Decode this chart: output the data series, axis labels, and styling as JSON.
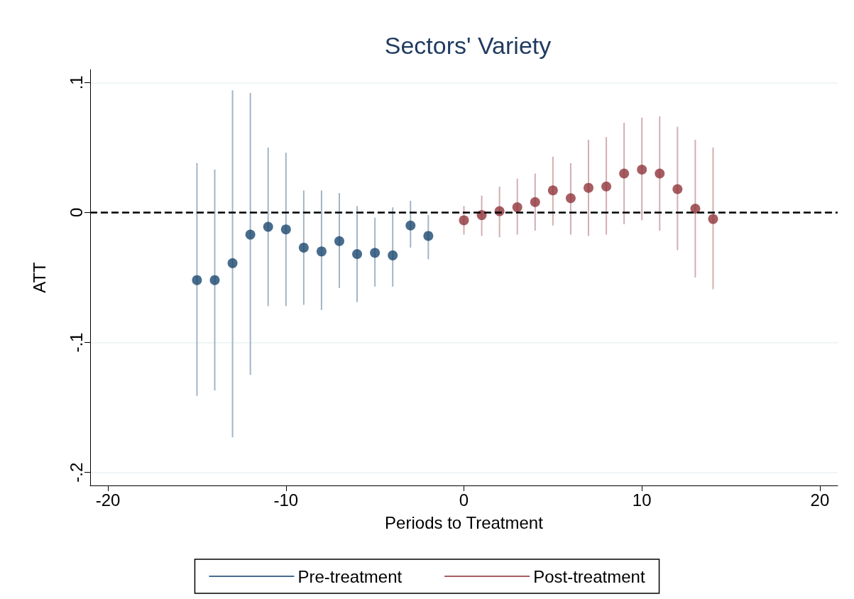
{
  "chart_data": {
    "type": "scatter",
    "title": "Sectors' Variety",
    "xlabel": "Periods to Treatment",
    "ylabel": "ATT",
    "xlim": [
      -21,
      21
    ],
    "xticks": [
      -20,
      -10,
      0,
      10,
      20
    ],
    "ylim": [
      -0.21,
      0.11
    ],
    "yticks": [
      {
        "value": 0.1,
        "label": ".1"
      },
      {
        "value": 0,
        "label": "0"
      },
      {
        "value": -0.1,
        "label": "-.1"
      },
      {
        "value": -0.2,
        "label": "-.2"
      }
    ],
    "grid": "y",
    "legend": "bottom",
    "marker": "circle",
    "ref_lines": [
      {
        "axis": "y",
        "value": 0,
        "color": "#000000",
        "line_style": "dashed"
      }
    ],
    "series": [
      {
        "name": "Pre-treatment",
        "color": "#1a476f",
        "x": [
          -15,
          -14,
          -13,
          -12,
          -11,
          -10,
          -9,
          -8,
          -7,
          -6,
          -5,
          -4,
          -3,
          -2
        ],
        "values": [
          -0.052,
          -0.052,
          -0.039,
          -0.017,
          -0.011,
          -0.013,
          -0.027,
          -0.03,
          -0.022,
          -0.032,
          -0.031,
          -0.033,
          -0.01,
          -0.018
        ],
        "errors": [
          [
            -0.141,
            0.038
          ],
          [
            -0.137,
            0.033
          ],
          [
            -0.173,
            0.094
          ],
          [
            -0.125,
            0.092
          ],
          [
            -0.072,
            0.05
          ],
          [
            -0.072,
            0.046
          ],
          [
            -0.071,
            0.017
          ],
          [
            -0.075,
            0.017
          ],
          [
            -0.058,
            0.015
          ],
          [
            -0.069,
            0.005
          ],
          [
            -0.057,
            -0.004
          ],
          [
            -0.057,
            0.004
          ],
          [
            -0.027,
            0.009
          ],
          [
            -0.036,
            -0.002
          ]
        ]
      },
      {
        "name": "Post-treatment",
        "color": "#90353b",
        "x": [
          0,
          1,
          2,
          3,
          4,
          5,
          6,
          7,
          8,
          9,
          10,
          11,
          12,
          13,
          14
        ],
        "values": [
          -0.006,
          -0.002,
          0.001,
          0.004,
          0.008,
          0.017,
          0.011,
          0.019,
          0.02,
          0.03,
          0.033,
          0.03,
          0.018,
          0.003,
          -0.005
        ],
        "errors": [
          [
            -0.017,
            0.005
          ],
          [
            -0.018,
            0.013
          ],
          [
            -0.019,
            0.02
          ],
          [
            -0.017,
            0.026
          ],
          [
            -0.014,
            0.03
          ],
          [
            -0.01,
            0.043
          ],
          [
            -0.017,
            0.038
          ],
          [
            -0.018,
            0.056
          ],
          [
            -0.017,
            0.058
          ],
          [
            -0.009,
            0.069
          ],
          [
            -0.006,
            0.073
          ],
          [
            -0.014,
            0.074
          ],
          [
            -0.029,
            0.066
          ],
          [
            -0.05,
            0.056
          ],
          [
            -0.059,
            0.05
          ]
        ]
      }
    ]
  }
}
